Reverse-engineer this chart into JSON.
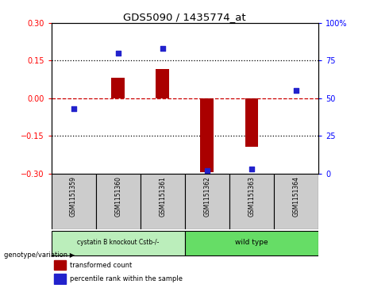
{
  "title": "GDS5090 / 1435774_at",
  "samples": [
    "GSM1151359",
    "GSM1151360",
    "GSM1151361",
    "GSM1151362",
    "GSM1151363",
    "GSM1151364"
  ],
  "transformed_count": [
    0.0,
    0.082,
    0.115,
    -0.295,
    -0.195,
    0.0
  ],
  "percentile_rank": [
    43,
    80,
    83,
    2,
    3,
    55
  ],
  "ylim_left": [
    -0.3,
    0.3
  ],
  "ylim_right": [
    0,
    100
  ],
  "yticks_left": [
    -0.3,
    -0.15,
    0.0,
    0.15,
    0.3
  ],
  "yticks_right": [
    0,
    25,
    50,
    75,
    100
  ],
  "bar_color": "#aa0000",
  "dot_color": "#2222cc",
  "hline_color": "#cc0000",
  "dotline_color": "#000000",
  "group1_label": "cystatin B knockout Cstb-/-",
  "group2_label": "wild type",
  "group1_color": "#bbeebb",
  "group2_color": "#66dd66",
  "group1_samples": [
    0,
    1,
    2
  ],
  "group2_samples": [
    3,
    4,
    5
  ],
  "legend_bar_label": "transformed count",
  "legend_dot_label": "percentile rank within the sample",
  "genotype_label": "genotype/variation",
  "background_color": "#ffffff",
  "plot_bg": "#ffffff",
  "sample_box_color": "#cccccc",
  "bar_width": 0.3
}
